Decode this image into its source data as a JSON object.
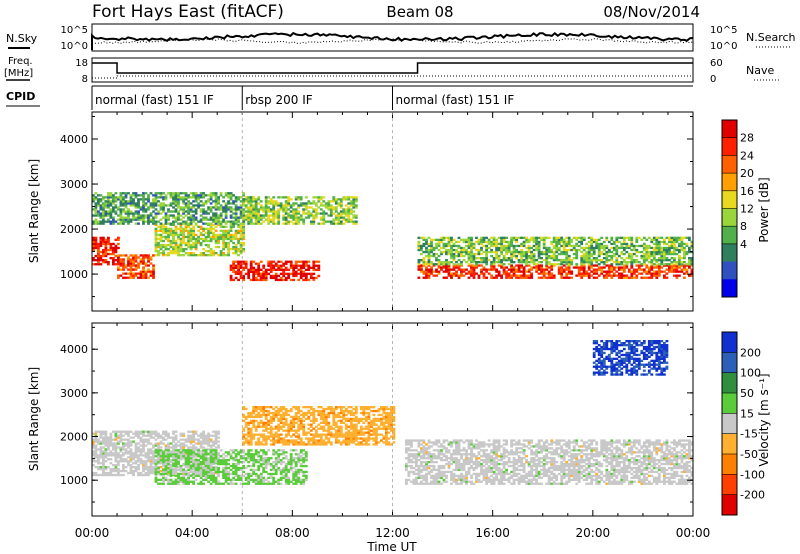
{
  "header": {
    "station": "Fort Hays East (fitACF)",
    "beam": "Beam 08",
    "date": "08/Nov/2014"
  },
  "noise_panel": {
    "left_label": "N.Sky",
    "right_label": "N.Search",
    "left_ticks": [
      "10^5",
      "10^0"
    ],
    "right_ticks": [
      "10^5",
      "10^0"
    ]
  },
  "freq_panel": {
    "left_label_1": "Freq.",
    "left_label_2": "[MHz]",
    "right_label": "Nave",
    "left_ticks": [
      "18",
      "8"
    ],
    "right_ticks": [
      "60",
      "0"
    ]
  },
  "cpid": {
    "label": "CPID",
    "segments": [
      {
        "name": "normal (fast) 151 IF",
        "start_hour": 0
      },
      {
        "name": "rbsp 200 IF",
        "start_hour": 6
      },
      {
        "name": "normal (fast) 151 IF",
        "start_hour": 12
      }
    ]
  },
  "power_panel": {
    "ylabel": "Slant Range [km]",
    "yticks": [
      "4000",
      "3000",
      "2000",
      "1000"
    ],
    "colorbar_label": "Power [dB]",
    "colorbar_ticks": [
      "28",
      "24",
      "20",
      "16",
      "12",
      "8",
      "4"
    ],
    "colors": [
      "#0000e8",
      "#3050c0",
      "#2f7f5f",
      "#52b04a",
      "#9ad63a",
      "#e8d820",
      "#ffa000",
      "#ff6000",
      "#ff2000",
      "#e00000"
    ]
  },
  "velocity_panel": {
    "ylabel": "Slant Range [km]",
    "yticks": [
      "4000",
      "3000",
      "2000",
      "1000"
    ],
    "colorbar_label": "Velocity [m s⁻¹]",
    "colorbar_ticks": [
      "200",
      "100",
      "50",
      "15",
      "-15",
      "-50",
      "-100",
      "-200"
    ],
    "colors": [
      "#1030d0",
      "#2a60b8",
      "#2f8f3f",
      "#5acc3a",
      "#c8c8c8",
      "#ffb030",
      "#ff8000",
      "#ff4000",
      "#e00000"
    ]
  },
  "xaxis": {
    "label": "Time UT",
    "ticks": [
      "00:00",
      "04:00",
      "08:00",
      "12:00",
      "16:00",
      "20:00",
      "00:00"
    ]
  },
  "chart_data": {
    "type": "heatmap",
    "title": "Fort Hays East (fitACF)",
    "xlabel": "Time UT",
    "ylabel": "Slant Range [km]",
    "xlim": [
      0,
      24
    ],
    "ylim": [
      180,
      4600
    ],
    "power_scale": [
      0,
      30
    ],
    "velocity_scale": [
      -250,
      250
    ],
    "power_blobs": [
      {
        "t0": 0.0,
        "t1": 1.0,
        "r0": 1200,
        "r1": 1800,
        "value": 26
      },
      {
        "t0": 1.0,
        "t1": 2.5,
        "r0": 900,
        "r1": 1400,
        "value": 24
      },
      {
        "t0": 2.5,
        "t1": 6.0,
        "r0": 1400,
        "r1": 2100,
        "value": 14
      },
      {
        "t0": 5.5,
        "t1": 9.0,
        "r0": 850,
        "r1": 1300,
        "value": 27
      },
      {
        "t0": 6.0,
        "t1": 10.5,
        "r0": 2100,
        "r1": 2700,
        "value": 13
      },
      {
        "t0": 13.0,
        "t1": 24.0,
        "r0": 900,
        "r1": 1200,
        "value": 25
      },
      {
        "t0": 13.0,
        "t1": 24.0,
        "r0": 1200,
        "r1": 1800,
        "value": 12
      },
      {
        "t0": 0.0,
        "t1": 6.0,
        "r0": 2100,
        "r1": 2800,
        "value": 10
      }
    ],
    "velocity_blobs": [
      {
        "t0": 0.0,
        "t1": 5.0,
        "r0": 1100,
        "r1": 2100,
        "value": 0
      },
      {
        "t0": 2.5,
        "t1": 8.5,
        "r0": 900,
        "r1": 1700,
        "value": 40
      },
      {
        "t0": 6.0,
        "t1": 12.0,
        "r0": 1800,
        "r1": 2700,
        "value": -60
      },
      {
        "t0": 12.5,
        "t1": 24.0,
        "r0": 900,
        "r1": 1900,
        "value": 0
      },
      {
        "t0": 20.0,
        "t1": 23.0,
        "r0": 3400,
        "r1": 4200,
        "value": 200
      }
    ]
  }
}
